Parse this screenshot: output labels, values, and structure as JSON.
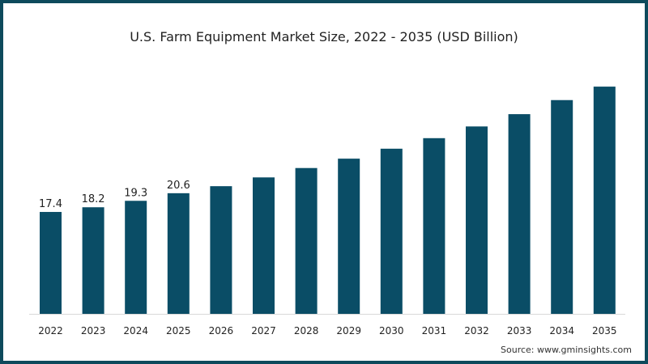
{
  "chart_data": {
    "type": "bar",
    "title": "U.S. Farm Equipment Market Size, 2022 - 2035 (USD Billion)",
    "xlabel": "",
    "ylabel": "",
    "categories": [
      "2022",
      "2023",
      "2024",
      "2025",
      "2026",
      "2027",
      "2028",
      "2029",
      "2030",
      "2031",
      "2032",
      "2033",
      "2034",
      "2035"
    ],
    "values": [
      17.4,
      18.2,
      19.3,
      20.6,
      21.8,
      23.3,
      24.9,
      26.5,
      28.2,
      30.0,
      32.0,
      34.1,
      36.5,
      38.8
    ],
    "data_labels": [
      "17.4",
      "18.2",
      "19.3",
      "20.6",
      null,
      null,
      null,
      null,
      null,
      null,
      null,
      null,
      null,
      null
    ],
    "ylim": [
      0,
      40
    ],
    "grid": false,
    "bar_color": "#0a4d66",
    "source": "Source: www.gminsights.com"
  }
}
